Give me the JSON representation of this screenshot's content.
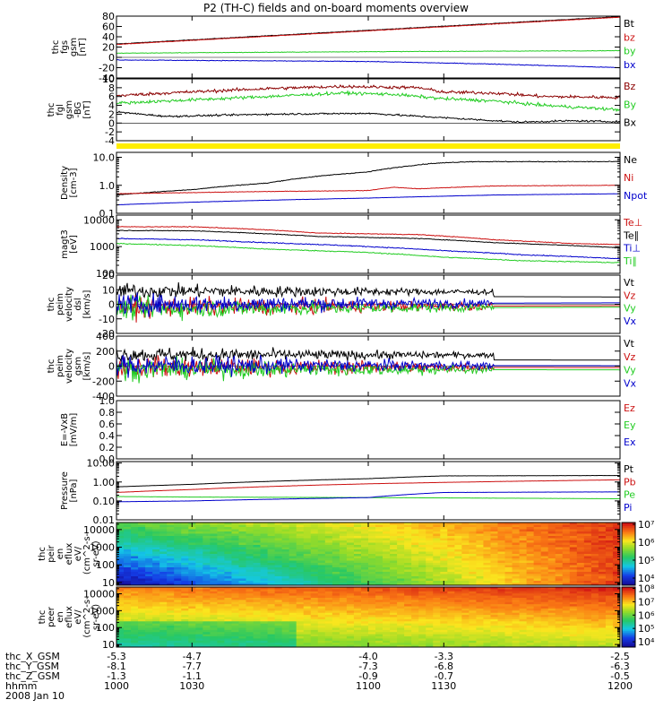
{
  "title": "P2 (TH-C) fields and on-board moments overview",
  "colors": {
    "black": "#000000",
    "red": "#cc1111",
    "darkred": "#8b0000",
    "green": "#22cc22",
    "blue": "#0000cc",
    "yellow": "#ffee00"
  },
  "panels": [
    {
      "id": "fgs",
      "ylabel": [
        "thc",
        "fgs",
        "gsm",
        "[nT]"
      ],
      "scale": "linear",
      "ylim": [
        -40,
        80
      ],
      "ticks": [
        -40,
        -20,
        0,
        20,
        40,
        60,
        80
      ],
      "tick_labels": [
        "-40",
        "-20",
        "0",
        "20",
        "40",
        "60",
        "80"
      ],
      "zero_line": true,
      "series": [
        {
          "name": "Bt",
          "color": "#000000",
          "noise": 0.5,
          "x": [
            1000,
            1200
          ],
          "y": [
            26,
            79
          ]
        },
        {
          "name": "bz",
          "color": "#cc1111",
          "noise": 0.5,
          "x": [
            1000,
            1200
          ],
          "y": [
            25,
            78
          ]
        },
        {
          "name": "by",
          "color": "#22cc22",
          "noise": 0.5,
          "x": [
            1000,
            1030,
            1100,
            1200
          ],
          "y": [
            8,
            9,
            11,
            13
          ]
        },
        {
          "name": "bx",
          "color": "#0000cc",
          "noise": 0.6,
          "x": [
            1000,
            1100,
            1150,
            1200
          ],
          "y": [
            -5,
            -8,
            -13,
            -20
          ]
        }
      ]
    },
    {
      "id": "fgl",
      "ylabel": [
        "thc",
        "fgl",
        "gsm",
        "-BG",
        "[nT]"
      ],
      "scale": "linear",
      "ylim": [
        -4,
        10
      ],
      "ticks": [
        -4,
        -2,
        0,
        2,
        4,
        6,
        8,
        10
      ],
      "tick_labels": [
        "-4",
        "-2",
        "0",
        "2",
        "4",
        "6",
        "8",
        "10"
      ],
      "zero_line": true,
      "series": [
        {
          "name": "Bz",
          "color": "#8b0000",
          "noise": 0.35,
          "x": [
            1000,
            1020,
            1060,
            1090,
            1120,
            1130,
            1150,
            1170,
            1200
          ],
          "y": [
            6.2,
            6.8,
            7.8,
            8.3,
            8.0,
            7.0,
            6.8,
            6.0,
            5.8
          ]
        },
        {
          "name": "By",
          "color": "#22cc22",
          "noise": 0.35,
          "x": [
            1000,
            1020,
            1060,
            1090,
            1110,
            1130,
            1150,
            1170,
            1200
          ],
          "y": [
            4.5,
            5.0,
            6.0,
            6.8,
            6.5,
            5.5,
            5.0,
            4.0,
            3.0
          ]
        },
        {
          "name": "Bx",
          "color": "#000000",
          "noise": 0.2,
          "x": [
            1000,
            1020,
            1060,
            1100,
            1130,
            1160,
            1180,
            1200
          ],
          "y": [
            2.5,
            1.5,
            2.0,
            2.2,
            1.2,
            0.2,
            0.5,
            0.3
          ]
        }
      ]
    },
    {
      "id": "density",
      "ylabel": [
        "Density",
        "[cm-3]"
      ],
      "scale": "log",
      "ylim": [
        0.1,
        15
      ],
      "ticks": [
        0.1,
        1.0,
        10.0
      ],
      "tick_labels": [
        "0.1",
        "1.0",
        "10.0"
      ],
      "series": [
        {
          "name": "Ne",
          "color": "#000000",
          "noise": 0.03,
          "x": [
            1000,
            1030,
            1060,
            1100,
            1125,
            1140,
            1200
          ],
          "y": [
            0.45,
            0.7,
            1.2,
            3.0,
            6.0,
            7.0,
            7.0
          ]
        },
        {
          "name": "Ni",
          "color": "#cc1111",
          "noise": 0.02,
          "x": [
            1000,
            1030,
            1060,
            1100,
            1110,
            1120,
            1150,
            1200
          ],
          "y": [
            0.5,
            0.55,
            0.6,
            0.65,
            0.85,
            0.75,
            0.95,
            1.0
          ]
        },
        {
          "name": "Npot",
          "color": "#0000cc",
          "noise": 0.01,
          "x": [
            1000,
            1030,
            1100,
            1150,
            1200
          ],
          "y": [
            0.2,
            0.25,
            0.35,
            0.45,
            0.5
          ]
        }
      ]
    },
    {
      "id": "temp",
      "ylabel": [
        "magt3",
        "[eV]"
      ],
      "scale": "log",
      "ylim": [
        100,
        15000
      ],
      "ticks": [
        100,
        1000,
        10000
      ],
      "tick_labels": [
        "100",
        "1000",
        "10000"
      ],
      "series": [
        {
          "name": "Te⊥",
          "color": "#cc1111",
          "noise": 0.03,
          "x": [
            1000,
            1030,
            1060,
            1080,
            1100,
            1120,
            1150,
            1180,
            1200
          ],
          "y": [
            5500,
            5500,
            4200,
            3200,
            3000,
            2800,
            1800,
            1300,
            1200
          ]
        },
        {
          "name": "Te∥",
          "color": "#000000",
          "noise": 0.03,
          "x": [
            1000,
            1030,
            1060,
            1080,
            1100,
            1120,
            1150,
            1180,
            1200
          ],
          "y": [
            4000,
            3900,
            3000,
            2400,
            2200,
            2000,
            1400,
            1100,
            900
          ]
        },
        {
          "name": "Ti⊥",
          "color": "#0000cc",
          "noise": 0.04,
          "x": [
            1000,
            1030,
            1060,
            1100,
            1130,
            1160,
            1200
          ],
          "y": [
            2000,
            1800,
            1400,
            1000,
            700,
            500,
            350
          ]
        },
        {
          "name": "Ti∥",
          "color": "#22cc22",
          "noise": 0.04,
          "x": [
            1000,
            1030,
            1060,
            1100,
            1130,
            1160,
            1200
          ],
          "y": [
            1300,
            1100,
            800,
            600,
            400,
            300,
            250
          ]
        }
      ]
    },
    {
      "id": "velocity",
      "ylabel": [
        "thc",
        "peim",
        "velocity",
        "dsl",
        "[km/s]"
      ],
      "scale": "linear",
      "ylim": [
        -20,
        20
      ],
      "ticks": [
        -20,
        -10,
        0,
        10,
        20
      ],
      "tick_labels": [
        "-20",
        "-10",
        "0",
        "10",
        "20"
      ],
      "zero_line": true,
      "series": [
        {
          "name": "Vt",
          "color": "#000000",
          "noise": 0,
          "x": [
            1000,
            1200
          ],
          "y": [
            6,
            5
          ]
        },
        {
          "name": "Vz",
          "color": "#cc1111",
          "noise": 0,
          "x": [
            1000,
            1200
          ],
          "y": [
            -2,
            -1
          ]
        },
        {
          "name": "Vy",
          "color": "#22cc22",
          "noise": 0,
          "x": [
            1000,
            1200
          ],
          "y": [
            -3,
            -2
          ]
        },
        {
          "name": "Vx",
          "color": "#0000cc",
          "noise": 0,
          "x": [
            1000,
            1200
          ],
          "y": [
            0,
            1
          ]
        }
      ]
    },
    {
      "id": "velocity_gsm",
      "ylabel": [
        "thc",
        "peim",
        "velocity",
        "gsm",
        "[km/s]"
      ],
      "scale": "linear",
      "ylim": [
        -400,
        400
      ],
      "ticks": [
        -400,
        -200,
        0,
        200,
        400
      ],
      "tick_labels": [
        "-400",
        "-200",
        "0",
        "200",
        "400"
      ],
      "zero_line": true,
      "series": [
        {
          "name": "Vt",
          "color": "#000000",
          "noise": 0,
          "x": [
            1000,
            1200
          ],
          "y": [
            90,
            80
          ]
        },
        {
          "name": "Vz",
          "color": "#cc1111",
          "noise": 0,
          "x": [
            1000,
            1200
          ],
          "y": [
            -10,
            -20
          ]
        },
        {
          "name": "Vy",
          "color": "#22cc22",
          "noise": 0,
          "x": [
            1000,
            1200
          ],
          "y": [
            -40,
            -50
          ]
        },
        {
          "name": "Vx",
          "color": "#0000cc",
          "noise": 0,
          "x": [
            1000,
            1200
          ],
          "y": [
            10,
            5
          ]
        }
      ]
    },
    {
      "id": "efield",
      "ylabel": [
        "E=-VxB",
        "[mV/m]"
      ],
      "scale": "linear",
      "ylim": [
        0,
        1
      ],
      "ticks": [
        0,
        0.2,
        0.4,
        0.6,
        0.8,
        1.0
      ],
      "tick_labels": [
        "0.0",
        "0.2",
        "0.4",
        "0.6",
        "0.8",
        "1.0"
      ],
      "series": [
        {
          "name": "Ez",
          "color": "#cc1111",
          "noise": 0,
          "x": [],
          "y": []
        },
        {
          "name": "Ey",
          "color": "#22cc22",
          "noise": 0,
          "x": [],
          "y": []
        },
        {
          "name": "Ex",
          "color": "#0000cc",
          "noise": 0,
          "x": [],
          "y": []
        }
      ]
    },
    {
      "id": "pressure",
      "ylabel": [
        "Pressure",
        "[nPa]"
      ],
      "scale": "log",
      "ylim": [
        0.01,
        12
      ],
      "ticks": [
        0.01,
        0.1,
        1.0,
        10.0
      ],
      "tick_labels": [
        "0.01",
        "0.10",
        "1.00",
        "10.00"
      ],
      "series": [
        {
          "name": "Pt",
          "color": "#000000",
          "noise": 0.01,
          "x": [
            1000,
            1030,
            1100,
            1130,
            1200
          ],
          "y": [
            0.55,
            0.75,
            1.5,
            2.1,
            2.2
          ]
        },
        {
          "name": "Pb",
          "color": "#cc1111",
          "noise": 0.01,
          "x": [
            1000,
            1030,
            1100,
            1200
          ],
          "y": [
            0.28,
            0.4,
            0.8,
            1.3
          ]
        },
        {
          "name": "Pe",
          "color": "#22cc22",
          "noise": 0.01,
          "x": [
            1000,
            1030,
            1100,
            1200
          ],
          "y": [
            0.17,
            0.16,
            0.15,
            0.13
          ]
        },
        {
          "name": "Pi",
          "color": "#0000cc",
          "noise": 0.01,
          "x": [
            1000,
            1030,
            1100,
            1130,
            1200
          ],
          "y": [
            0.09,
            0.1,
            0.15,
            0.28,
            0.3
          ]
        }
      ]
    },
    {
      "id": "ion_spec",
      "type": "spectrogram",
      "ylabel": [
        "thc",
        "peir",
        "en",
        "eflux",
        "eV/",
        "(cm^2-s-",
        "sr-eV)"
      ],
      "scale": "log",
      "ylim": [
        7,
        25000
      ],
      "ticks": [
        10,
        100,
        1000,
        10000
      ],
      "tick_labels": [
        "10",
        "100",
        "1000",
        "10000"
      ],
      "colorbar": {
        "ticks": [
          4,
          5,
          6,
          7
        ],
        "tick_labels": [
          "10⁴",
          "10⁵",
          "10⁶",
          "10⁷"
        ],
        "range": [
          3.6,
          7.1
        ]
      }
    },
    {
      "id": "elec_spec",
      "type": "spectrogram",
      "ylabel": [
        "thc",
        "peer",
        "en",
        "eflux",
        "eV/",
        "(cm^2-s-",
        "sr-eV)"
      ],
      "scale": "log",
      "ylim": [
        7,
        25000
      ],
      "ticks": [
        10,
        100,
        1000,
        10000
      ],
      "tick_labels": [
        "10",
        "100",
        "1000",
        "10000"
      ],
      "colorbar": {
        "ticks": [
          4,
          5,
          6,
          7,
          8
        ],
        "tick_labels": [
          "10⁴",
          "10⁵",
          "10⁶",
          "10⁷",
          "10⁸"
        ],
        "range": [
          3.6,
          8.1
        ]
      }
    }
  ],
  "xaxis": {
    "range": [
      1000,
      1200
    ],
    "rows": [
      {
        "label": "thc_X_GSM",
        "values": [
          "-5.3",
          "-4.7",
          "-4.0",
          "-3.3",
          "-2.5"
        ]
      },
      {
        "label": "thc_Y_GSM",
        "values": [
          "-8.1",
          "-7.7",
          "-7.3",
          "-6.8",
          "-6.3"
        ]
      },
      {
        "label": "thc_Z_GSM",
        "values": [
          "-1.3",
          "-1.1",
          "-0.9",
          "-0.7",
          "-0.5"
        ]
      },
      {
        "label": "hhmm",
        "values": [
          "1000",
          "1030",
          "1100",
          "1130",
          "1200"
        ]
      }
    ],
    "date": "2008 Jan 10"
  },
  "chart_data": {
    "type": "line",
    "title": "P2 (TH-C) fields and on-board moments overview",
    "x": [
      1000,
      1030,
      1100,
      1130,
      1200
    ],
    "xlabel": "hhmm",
    "date": "2008 Jan 10",
    "panels": [
      "fgs",
      "fgl",
      "density",
      "temp",
      "velocity",
      "velocity_gsm",
      "efield",
      "pressure",
      "ion_spec",
      "elec_spec"
    ]
  }
}
